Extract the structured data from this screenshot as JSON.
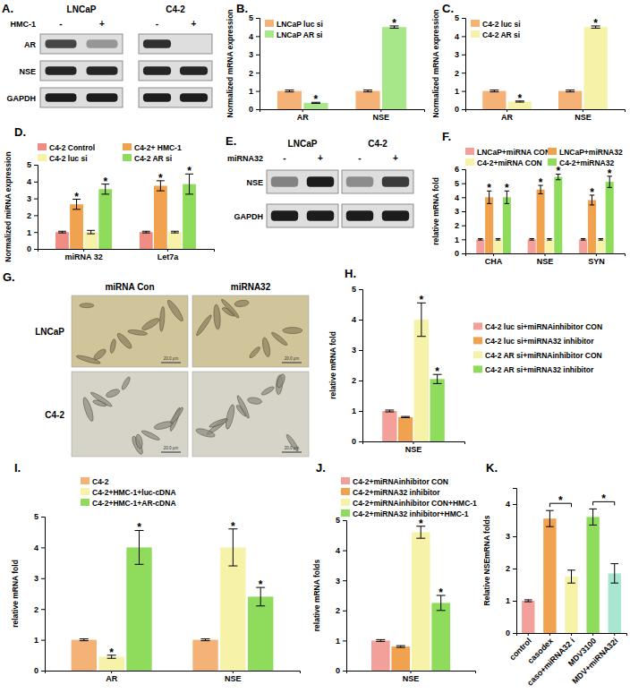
{
  "chart_data": [
    {
      "type": "blot",
      "panel": "A.",
      "treatment": "HMC-1",
      "groups": [
        {
          "name": "LNCaP",
          "lanes": [
            "-",
            "+"
          ]
        },
        {
          "name": "C4-2",
          "lanes": [
            "-",
            "+"
          ]
        }
      ],
      "rows": [
        {
          "name": "AR",
          "intensity": [
            0.75,
            0.35,
            0.85,
            0
          ]
        },
        {
          "name": "NSE",
          "intensity": [
            0.9,
            0.9,
            0.9,
            0.9
          ]
        },
        {
          "name": "GAPDH",
          "intensity": [
            0.95,
            0.95,
            0.95,
            0.95
          ]
        }
      ]
    },
    {
      "type": "bar",
      "panel": "B.",
      "ylabel": "Normalized mRNA expression",
      "categories": [
        "AR",
        "NSE"
      ],
      "ylim": [
        0,
        5
      ],
      "yticks": [
        0,
        1,
        2,
        3,
        4,
        5
      ],
      "legend": "top-left",
      "series": [
        {
          "name": "LNCaP luc si",
          "color": "#f4b277",
          "values": [
            1,
            1
          ],
          "errors": [
            0.05,
            0.05
          ]
        },
        {
          "name": "LNCaP AR si",
          "color": "#a8e68a",
          "values": [
            0.35,
            4.5
          ],
          "errors": [
            0.03,
            0.06
          ],
          "significance": [
            "*",
            "*"
          ]
        }
      ]
    },
    {
      "type": "bar",
      "panel": "C.",
      "ylabel": "Normalized mRNA expression",
      "categories": [
        "AR",
        "NSE"
      ],
      "ylim": [
        0,
        5
      ],
      "yticks": [
        0,
        1,
        2,
        3,
        4,
        5
      ],
      "legend": "top-left",
      "series": [
        {
          "name": "C4-2 luc si",
          "color": "#f4b277",
          "values": [
            1,
            1
          ],
          "errors": [
            0.05,
            0.05
          ]
        },
        {
          "name": "C4-2 AR si",
          "color": "#f6f3a8",
          "values": [
            0.42,
            4.5
          ],
          "errors": [
            0.03,
            0.06
          ],
          "significance": [
            "*",
            "*"
          ]
        }
      ]
    },
    {
      "type": "bar",
      "panel": "D.",
      "ylabel": "Normalized miRNA expression",
      "categories": [
        "miRNA 32",
        "Let7a"
      ],
      "ylim": [
        0,
        5
      ],
      "yticks": [
        0,
        1,
        2,
        3,
        4,
        5
      ],
      "legend": "top",
      "series": [
        {
          "name": "C4-2 Control",
          "color": "#ef8d84",
          "values": [
            1,
            1
          ],
          "errors": [
            0.05,
            0.05
          ]
        },
        {
          "name": "C4-2+ HMC-1",
          "color": "#f0a24f",
          "values": [
            2.65,
            3.75
          ],
          "errors": [
            0.3,
            0.3
          ],
          "significance": [
            "*",
            "*"
          ]
        },
        {
          "name": "C4-2 luc si",
          "color": "#f6f3a8",
          "values": [
            1,
            1
          ],
          "errors": [
            0.1,
            0.05
          ]
        },
        {
          "name": "C4-2 AR si",
          "color": "#8fdc5c",
          "values": [
            3.55,
            3.85
          ],
          "errors": [
            0.3,
            0.6
          ],
          "significance": [
            "*",
            "*"
          ]
        }
      ]
    },
    {
      "type": "blot",
      "panel": "E.",
      "treatment": "miRNA32",
      "groups": [
        {
          "name": "LNCaP",
          "lanes": [
            "-",
            "+"
          ]
        },
        {
          "name": "C4-2",
          "lanes": [
            "-",
            "+"
          ]
        }
      ],
      "rows": [
        {
          "name": "NSE",
          "intensity": [
            0.45,
            0.95,
            0.4,
            0.8
          ]
        },
        {
          "name": "GAPDH",
          "intensity": [
            0.95,
            0.95,
            0.95,
            0.95
          ]
        }
      ]
    },
    {
      "type": "bar",
      "panel": "F.",
      "ylabel": "relative mRNA fold",
      "categories": [
        "CHA",
        "NSE",
        "SYN"
      ],
      "ylim": [
        0,
        6
      ],
      "yticks": [
        0,
        1,
        2,
        3,
        4,
        5,
        6
      ],
      "legend": "top",
      "series": [
        {
          "name": "LNCaP+miRNA CON",
          "color": "#f4a09a",
          "values": [
            1,
            1,
            1
          ],
          "errors": [
            0.05,
            0.05,
            0.05
          ]
        },
        {
          "name": "LNCaP+miRNA32",
          "color": "#f0a24f",
          "values": [
            4.0,
            4.55,
            3.8
          ],
          "errors": [
            0.45,
            0.3,
            0.35
          ],
          "significance": [
            "*",
            "*",
            "*"
          ]
        },
        {
          "name": "C4-2+miRNA CON",
          "color": "#f6f3a8",
          "values": [
            1,
            1,
            1
          ],
          "errors": [
            0.05,
            0.05,
            0.05
          ]
        },
        {
          "name": "C4-2+miRNA32",
          "color": "#8fdc5c",
          "values": [
            4.0,
            5.45,
            5.1
          ],
          "errors": [
            0.45,
            0.2,
            0.4
          ],
          "significance": [
            "*",
            "*",
            "*"
          ]
        }
      ]
    },
    {
      "type": "image",
      "panel": "G.",
      "columns": [
        "miRNA Con",
        "miRNA32"
      ],
      "rows": [
        "LNCaP",
        "C4-2"
      ],
      "scale_bar_label": "20.0 μm"
    },
    {
      "type": "bar",
      "panel": "H.",
      "ylabel": "relative mRNA fold",
      "categories": [
        "NSE"
      ],
      "ylim": [
        0,
        5
      ],
      "yticks": [
        0,
        1,
        2,
        3,
        4,
        5
      ],
      "legend": "right",
      "series": [
        {
          "name": "C4-2 luc si+miRNAinhibitor CON",
          "color": "#f4a09a",
          "values": [
            1
          ],
          "errors": [
            0.03
          ]
        },
        {
          "name": "C4-2 luc si+miRNA32 inhibitor",
          "color": "#f0a24f",
          "values": [
            0.8
          ],
          "errors": [
            0.02
          ]
        },
        {
          "name": "C4-2 AR si+miRNAinhibitor CON",
          "color": "#f6f3a8",
          "values": [
            4.0
          ],
          "errors": [
            0.55
          ],
          "significance": [
            "*"
          ]
        },
        {
          "name": "C4-2 AR si+miRNA32 inhibitor",
          "color": "#8fdc5c",
          "values": [
            2.05
          ],
          "errors": [
            0.15
          ],
          "significance": [
            "*"
          ]
        }
      ]
    },
    {
      "type": "bar",
      "panel": "I.",
      "ylabel": "relative mRNA fold",
      "categories": [
        "AR",
        "NSE"
      ],
      "ylim": [
        0,
        5
      ],
      "yticks": [
        0,
        1,
        2,
        3,
        4,
        5
      ],
      "legend": "top",
      "series": [
        {
          "name": "C4-2",
          "color": "#f4b277",
          "values": [
            1,
            1
          ],
          "errors": [
            0.03,
            0.03
          ]
        },
        {
          "name": "C4-2+HMC-1+luc-cDNA",
          "color": "#f6f3a8",
          "values": [
            0.45,
            4.0
          ],
          "errors": [
            0.05,
            0.6
          ],
          "significance": [
            "*",
            "*"
          ]
        },
        {
          "name": "C4-2+HMC-1+AR-cDNA",
          "color": "#8fdc5c",
          "values": [
            4.0,
            2.4
          ],
          "errors": [
            0.55,
            0.3
          ],
          "significance": [
            "*",
            "*"
          ]
        }
      ]
    },
    {
      "type": "bar",
      "panel": "J.",
      "ylabel": "relative mRNA folds",
      "categories": [
        "NSE"
      ],
      "ylim": [
        0,
        5
      ],
      "yticks": [
        0,
        1,
        2,
        3,
        4,
        5
      ],
      "legend": "top",
      "series": [
        {
          "name": "C4-2+miRNAinhibitor CON",
          "color": "#f4a09a",
          "values": [
            1
          ],
          "errors": [
            0.03
          ]
        },
        {
          "name": "C4-2+miRNA32 inhibitor",
          "color": "#f0a24f",
          "values": [
            0.8
          ],
          "errors": [
            0.03
          ]
        },
        {
          "name": "C4-2+miRNAinhibitor CON+HMC-1",
          "color": "#f6f3a8",
          "values": [
            4.6
          ],
          "errors": [
            0.2
          ],
          "significance": [
            "*"
          ]
        },
        {
          "name": "C4-2+miRNA32 inhibitor+HMC-1",
          "color": "#8fdc5c",
          "values": [
            2.25
          ],
          "errors": [
            0.25
          ],
          "significance": [
            "*"
          ]
        }
      ]
    },
    {
      "type": "bar",
      "panel": "K.",
      "ylabel": "Relative NSEmRNA folds",
      "categories": [
        "control",
        "casodex",
        "caso+miRNA32 i",
        "MDV3100",
        "MDV+miRNA32i"
      ],
      "ylim": [
        0,
        4.5
      ],
      "yticks": [
        0,
        1,
        2,
        3,
        4
      ],
      "values": [
        1,
        3.55,
        1.75,
        3.6,
        1.85
      ],
      "errors": [
        0.03,
        0.25,
        0.2,
        0.25,
        0.3
      ],
      "colors": [
        "#f4a09a",
        "#f0a24f",
        "#f6f3a8",
        "#8fdc5c",
        "#a8e6cf"
      ],
      "comparisons": [
        {
          "pair": [
            "casodex",
            "caso+miRNA32 i"
          ],
          "label": "*"
        },
        {
          "pair": [
            "MDV3100",
            "MDV+miRNA32i"
          ],
          "label": "*"
        }
      ]
    }
  ]
}
